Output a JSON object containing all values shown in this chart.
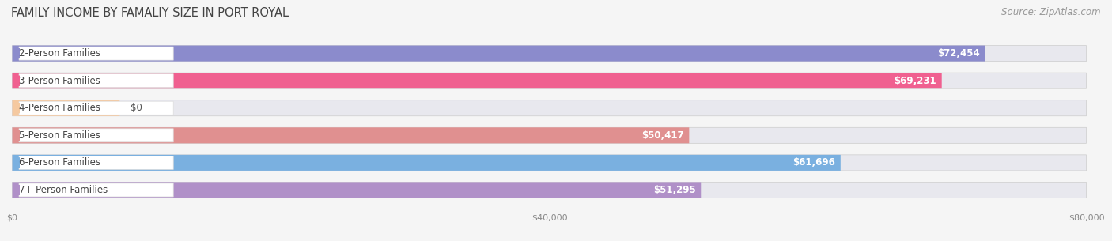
{
  "title": "FAMILY INCOME BY FAMALIY SIZE IN PORT ROYAL",
  "source": "Source: ZipAtlas.com",
  "categories": [
    "2-Person Families",
    "3-Person Families",
    "4-Person Families",
    "5-Person Families",
    "6-Person Families",
    "7+ Person Families"
  ],
  "values": [
    72454,
    69231,
    0,
    50417,
    61696,
    51295
  ],
  "bar_colors": [
    "#8b8bcc",
    "#f06090",
    "#f5c9a0",
    "#e09090",
    "#7ab0e0",
    "#b090c8"
  ],
  "value_labels": [
    "$72,454",
    "$69,231",
    "$0",
    "$50,417",
    "$61,696",
    "$51,295"
  ],
  "xmax": 80000,
  "xticks": [
    0,
    40000,
    80000
  ],
  "xticklabels": [
    "$0",
    "$40,000",
    "$80,000"
  ],
  "background_color": "#f5f5f5",
  "bar_bg_color": "#e8e8ee",
  "title_fontsize": 10.5,
  "source_fontsize": 8.5,
  "label_fontsize": 8.5,
  "value_fontsize": 8.5,
  "zero_bar_width": 8000
}
